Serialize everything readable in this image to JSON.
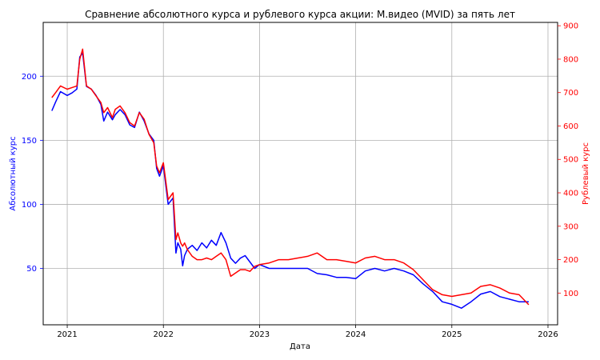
{
  "chart_data": {
    "type": "line",
    "title": "Сравнение абсолютного курса и рублевого курса акции: М.видео (MVID) за пять лет",
    "xlabel": "Дата",
    "ylabel_left": "Абсолютный курс",
    "ylabel_right": "Рублевый курс",
    "xlim": [
      2020.75,
      2026.1
    ],
    "ylim_left": [
      6,
      242
    ],
    "ylim_right": [
      5,
      910
    ],
    "x_ticks": [
      2021,
      2022,
      2023,
      2024,
      2025,
      2026
    ],
    "x_tick_labels": [
      "2021",
      "2022",
      "2023",
      "2024",
      "2025",
      "2026"
    ],
    "y_left_ticks": [
      50,
      100,
      150,
      200
    ],
    "y_left_tick_labels": [
      "50",
      "100",
      "150",
      "200"
    ],
    "y_right_ticks": [
      100,
      200,
      300,
      400,
      500,
      600,
      700,
      800,
      900
    ],
    "y_right_tick_labels": [
      "100",
      "200",
      "300",
      "400",
      "500",
      "600",
      "700",
      "800",
      "900"
    ],
    "grid": true,
    "colors": {
      "left": "#0000ff",
      "right": "#ff0000"
    },
    "series": [
      {
        "axis": "left",
        "color": "#0000ff",
        "x": [
          2020.84,
          2020.88,
          2020.93,
          2021.0,
          2021.05,
          2021.1,
          2021.13,
          2021.16,
          2021.2,
          2021.25,
          2021.3,
          2021.35,
          2021.38,
          2021.42,
          2021.47,
          2021.5,
          2021.55,
          2021.6,
          2021.65,
          2021.7,
          2021.75,
          2021.8,
          2021.85,
          2021.9,
          2021.93,
          2021.96,
          2022.0,
          2022.05,
          2022.1,
          2022.13,
          2022.15,
          2022.18,
          2022.2,
          2022.22,
          2022.25,
          2022.3,
          2022.35,
          2022.4,
          2022.45,
          2022.5,
          2022.55,
          2022.6,
          2022.65,
          2022.7,
          2022.75,
          2022.8,
          2022.85,
          2022.9,
          2022.95,
          2023.0,
          2023.1,
          2023.2,
          2023.3,
          2023.4,
          2023.5,
          2023.6,
          2023.7,
          2023.8,
          2023.9,
          2024.0,
          2024.1,
          2024.2,
          2024.3,
          2024.4,
          2024.5,
          2024.6,
          2024.7,
          2024.8,
          2024.9,
          2025.0,
          2025.1,
          2025.2,
          2025.3,
          2025.4,
          2025.5,
          2025.6,
          2025.7,
          2025.8
        ],
        "y": [
          173,
          180,
          188,
          185,
          187,
          190,
          215,
          218,
          192,
          190,
          185,
          178,
          165,
          172,
          166,
          170,
          174,
          170,
          162,
          160,
          172,
          165,
          155,
          150,
          128,
          122,
          130,
          100,
          105,
          62,
          70,
          65,
          52,
          60,
          65,
          68,
          64,
          70,
          66,
          72,
          68,
          78,
          70,
          58,
          54,
          58,
          60,
          55,
          50,
          53,
          50,
          50,
          50,
          50,
          50,
          46,
          45,
          43,
          43,
          42,
          48,
          50,
          48,
          50,
          48,
          45,
          38,
          32,
          24,
          22,
          19,
          24,
          30,
          32,
          28,
          26,
          24,
          24
        ]
      },
      {
        "axis": "right",
        "color": "#ff0000",
        "x": [
          2020.84,
          2020.88,
          2020.93,
          2021.0,
          2021.05,
          2021.1,
          2021.13,
          2021.16,
          2021.2,
          2021.25,
          2021.3,
          2021.35,
          2021.38,
          2021.42,
          2021.47,
          2021.5,
          2021.55,
          2021.6,
          2021.65,
          2021.7,
          2021.75,
          2021.8,
          2021.85,
          2021.9,
          2021.93,
          2021.96,
          2022.0,
          2022.05,
          2022.1,
          2022.13,
          2022.15,
          2022.18,
          2022.2,
          2022.22,
          2022.25,
          2022.3,
          2022.35,
          2022.4,
          2022.45,
          2022.5,
          2022.55,
          2022.6,
          2022.65,
          2022.7,
          2022.75,
          2022.8,
          2022.85,
          2022.9,
          2022.95,
          2023.0,
          2023.1,
          2023.2,
          2023.3,
          2023.4,
          2023.5,
          2023.6,
          2023.7,
          2023.8,
          2023.9,
          2024.0,
          2024.1,
          2024.2,
          2024.3,
          2024.4,
          2024.5,
          2024.6,
          2024.7,
          2024.8,
          2024.9,
          2025.0,
          2025.1,
          2025.2,
          2025.3,
          2025.4,
          2025.5,
          2025.6,
          2025.7,
          2025.8
        ],
        "y": [
          685,
          700,
          720,
          710,
          715,
          720,
          800,
          830,
          720,
          710,
          690,
          670,
          640,
          655,
          625,
          650,
          660,
          640,
          610,
          600,
          640,
          620,
          575,
          550,
          480,
          460,
          490,
          380,
          400,
          260,
          280,
          250,
          240,
          250,
          230,
          210,
          200,
          200,
          205,
          200,
          210,
          220,
          200,
          150,
          160,
          170,
          170,
          165,
          180,
          185,
          190,
          200,
          200,
          205,
          210,
          220,
          200,
          200,
          195,
          190,
          205,
          210,
          200,
          200,
          190,
          170,
          140,
          110,
          95,
          90,
          95,
          100,
          120,
          125,
          115,
          100,
          95,
          65
        ]
      }
    ]
  }
}
